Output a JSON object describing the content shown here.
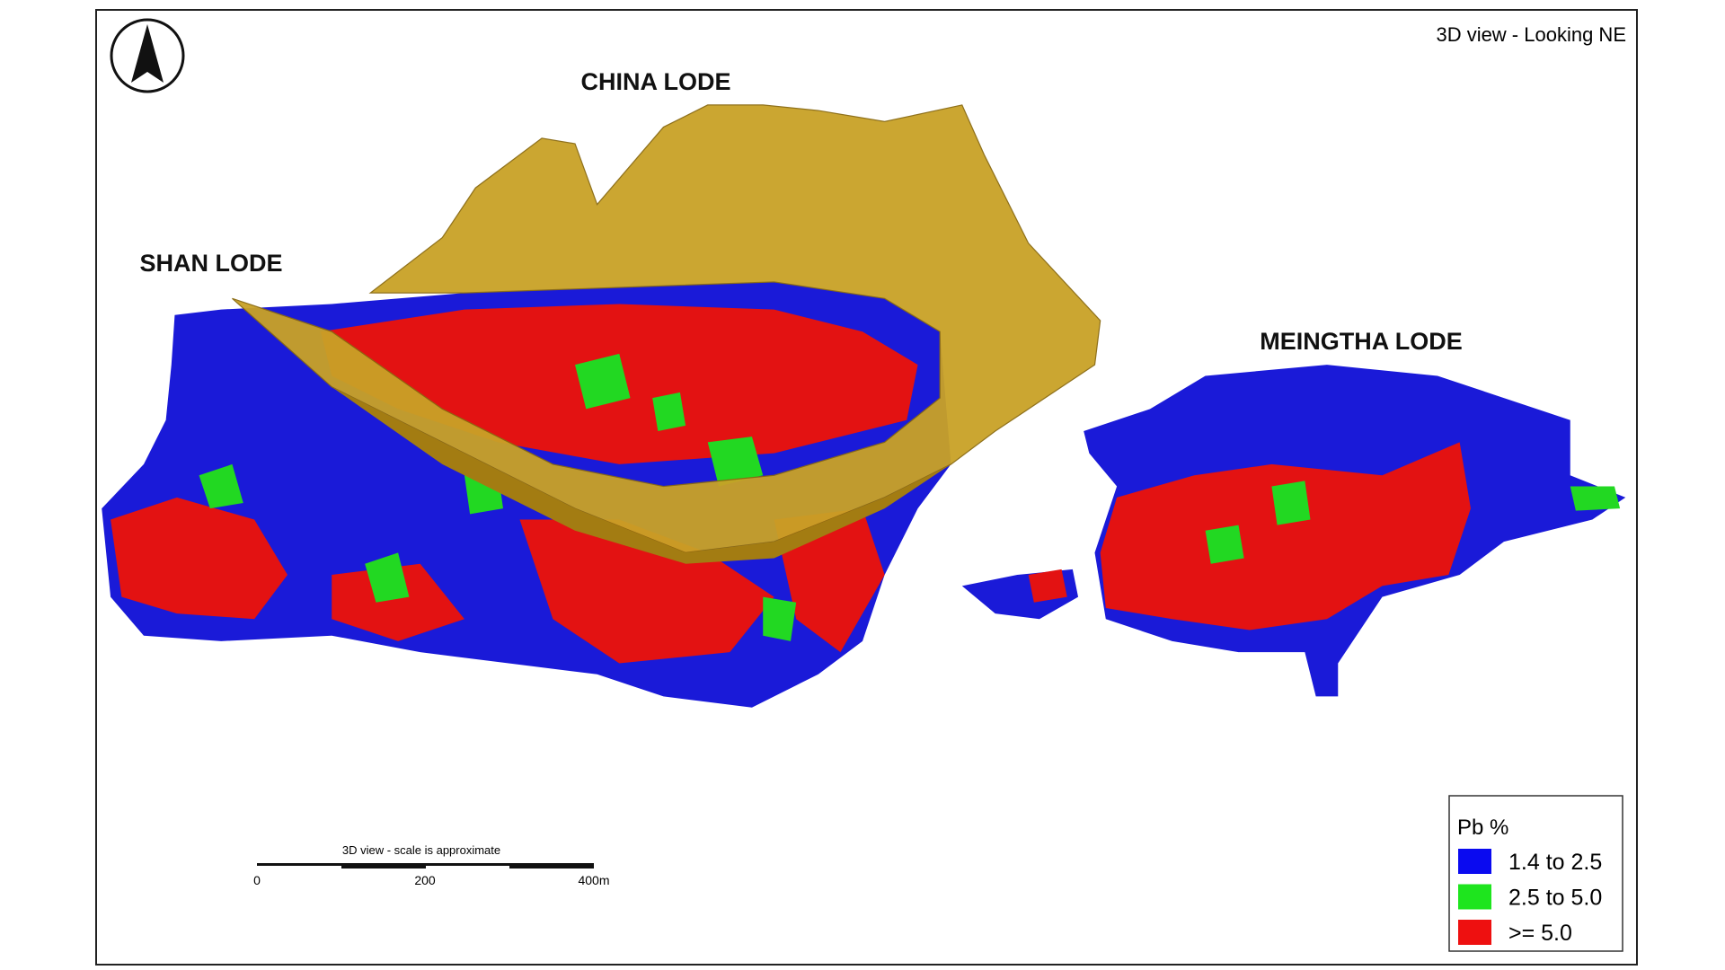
{
  "view_label": "3D view - Looking NE",
  "lodes": [
    {
      "name": "CHINA LODE"
    },
    {
      "name": "SHAN LODE"
    },
    {
      "name": "MEINGTHA LODE"
    }
  ],
  "scale_bar": {
    "title": "3D view - scale is approximate",
    "labels": [
      "0",
      "200",
      "400m"
    ]
  },
  "legend": {
    "title": "Pb %",
    "items": [
      {
        "label": "1.4 to 2.5",
        "color": "#0a0af0"
      },
      {
        "label": "2.5 to 5.0",
        "color": "#1ee51e"
      },
      {
        "label": ">= 5.0",
        "color": "#ee1010"
      }
    ]
  }
}
